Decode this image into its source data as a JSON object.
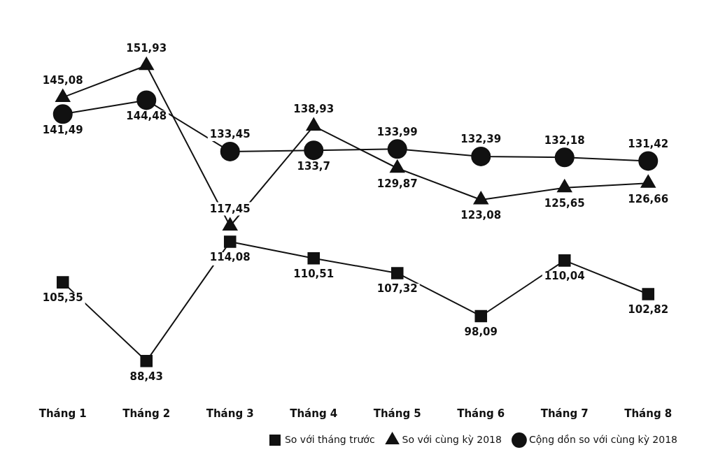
{
  "chart_data": {
    "type": "line",
    "categories": [
      "Tháng 1",
      "Tháng 2",
      "Tháng 3",
      "Tháng 4",
      "Tháng 5",
      "Tháng 6",
      "Tháng 7",
      "Tháng 8"
    ],
    "series": [
      {
        "name": "So với tháng trước",
        "color": "#111111",
        "marker": "square",
        "values": [
          105.35,
          88.43,
          114.08,
          110.51,
          107.32,
          98.09,
          110.04,
          102.82
        ],
        "value_labels": [
          "105,35",
          "88,43",
          "114,08",
          "110,51",
          "107,32",
          "98,09",
          "110,04",
          "102,82"
        ]
      },
      {
        "name": "So với cùng kỳ 2018",
        "color": "#111111",
        "marker": "triangle",
        "values": [
          145.08,
          151.93,
          117.45,
          138.93,
          129.87,
          123.08,
          125.65,
          126.66
        ],
        "value_labels": [
          "145,08",
          "151,93",
          "117,45",
          "138,93",
          "129,87",
          "123,08",
          "125,65",
          "126,66"
        ]
      },
      {
        "name": "Cộng dồn so với cùng kỳ 2018",
        "color": "#111111",
        "marker": "circle",
        "values": [
          141.49,
          144.48,
          133.45,
          133.7,
          133.99,
          132.39,
          132.18,
          131.42
        ],
        "value_labels": [
          "141,49",
          "144,48",
          "133,45",
          "133,7",
          "133,99",
          "132,39",
          "132,18",
          "131,42"
        ]
      }
    ],
    "grid": false,
    "legend": "bottom right",
    "line_style": "solid"
  }
}
